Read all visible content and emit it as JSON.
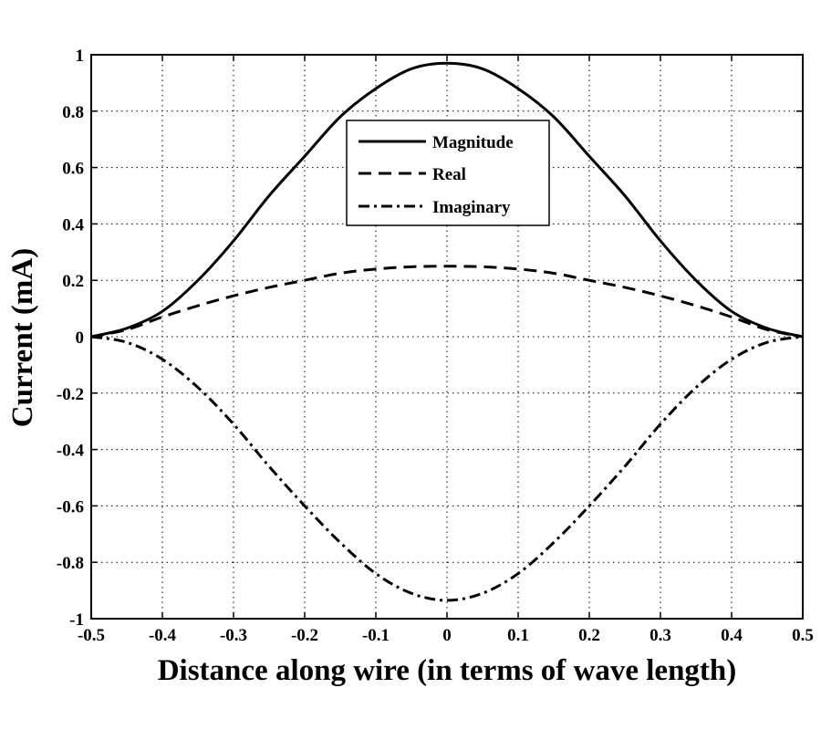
{
  "chart_data": {
    "type": "line",
    "title": "",
    "xlabel": "Distance along wire (in terms of wave length)",
    "ylabel": "Current (mA)",
    "xlim": [
      -0.5,
      0.5
    ],
    "ylim": [
      -1,
      1
    ],
    "grid": true,
    "legend_position": "top-center",
    "x_ticks": [
      "-0.5",
      "-0.4",
      "-0.3",
      "-0.2",
      "-0.1",
      "0",
      "0.1",
      "0.2",
      "0.3",
      "0.4",
      "0.5"
    ],
    "y_ticks": [
      "1",
      "0.8",
      "0.6",
      "0.4",
      "0.2",
      "0",
      "-0.2",
      "-0.4",
      "-0.6",
      "-0.8",
      "-1"
    ],
    "x": [
      -0.5,
      -0.45,
      -0.4,
      -0.35,
      -0.3,
      -0.25,
      -0.2,
      -0.15,
      -0.1,
      -0.05,
      0,
      0.05,
      0.1,
      0.15,
      0.2,
      0.25,
      0.3,
      0.35,
      0.4,
      0.45,
      0.5
    ],
    "series": [
      {
        "name": "Magnitude",
        "style": "solid",
        "values": [
          0,
          0.03,
          0.09,
          0.2,
          0.34,
          0.5,
          0.64,
          0.78,
          0.88,
          0.95,
          0.97,
          0.95,
          0.88,
          0.78,
          0.64,
          0.5,
          0.34,
          0.2,
          0.09,
          0.03,
          0
        ]
      },
      {
        "name": "Real",
        "style": "dashed",
        "values": [
          0,
          0.025,
          0.07,
          0.11,
          0.145,
          0.175,
          0.2,
          0.225,
          0.24,
          0.248,
          0.25,
          0.248,
          0.24,
          0.225,
          0.2,
          0.175,
          0.145,
          0.11,
          0.07,
          0.025,
          0
        ]
      },
      {
        "name": "Imaginary",
        "style": "dashdot",
        "values": [
          0,
          -0.02,
          -0.08,
          -0.18,
          -0.31,
          -0.46,
          -0.6,
          -0.73,
          -0.84,
          -0.91,
          -0.935,
          -0.91,
          -0.84,
          -0.73,
          -0.6,
          -0.46,
          -0.31,
          -0.18,
          -0.08,
          -0.02,
          0
        ]
      }
    ]
  }
}
